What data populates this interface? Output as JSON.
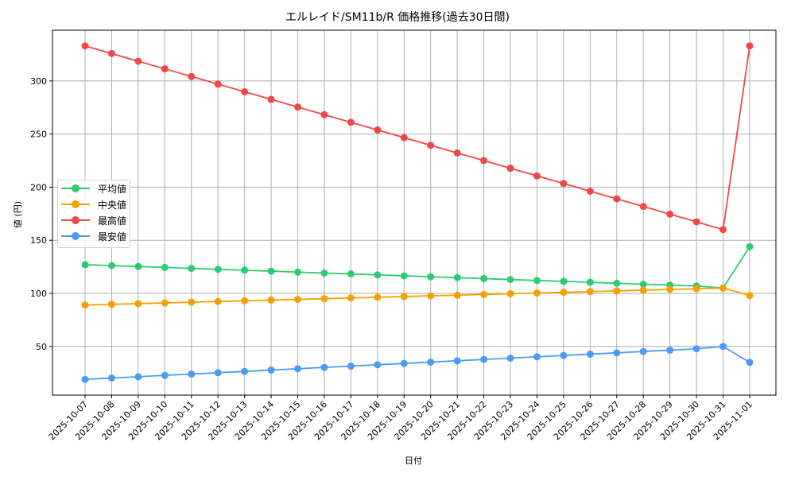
{
  "chart_data": {
    "type": "line",
    "title": "エルレイド/SM11b/R 価格推移(過去30日間)",
    "xlabel": "日付",
    "ylabel": "値 (円)",
    "ylim": [
      8,
      346
    ],
    "yticks": [
      50,
      100,
      150,
      200,
      250,
      300
    ],
    "grid": true,
    "legend_position": "center left",
    "categories": [
      "2025-10-07",
      "2025-10-08",
      "2025-10-09",
      "2025-10-10",
      "2025-10-11",
      "2025-10-12",
      "2025-10-13",
      "2025-10-14",
      "2025-10-15",
      "2025-10-16",
      "2025-10-17",
      "2025-10-18",
      "2025-10-19",
      "2025-10-20",
      "2025-10-21",
      "2025-10-22",
      "2025-10-23",
      "2025-10-24",
      "2025-10-25",
      "2025-10-26",
      "2025-10-27",
      "2025-10-28",
      "2025-10-29",
      "2025-10-30",
      "2025-10-31",
      "2025-11-01"
    ],
    "series": [
      {
        "name": "平均値",
        "color": "#2ecc71",
        "values": [
          127,
          126.1,
          125.3,
          124.4,
          123.5,
          122.6,
          121.8,
          120.9,
          120,
          119.1,
          118.3,
          117.4,
          116.5,
          115.6,
          114.8,
          113.9,
          113,
          112.1,
          111.3,
          110.4,
          109.5,
          108.6,
          107.8,
          106.9,
          105,
          144
        ]
      },
      {
        "name": "中央値",
        "color": "#f5a000",
        "values": [
          89,
          89.7,
          90.3,
          91,
          91.7,
          92.3,
          93,
          93.7,
          94.3,
          95,
          95.7,
          96.3,
          97,
          97.7,
          98.3,
          99,
          99.7,
          100.3,
          101,
          101.7,
          102.3,
          103,
          103.7,
          104.3,
          105,
          98
        ]
      },
      {
        "name": "最高値",
        "color": "#f04848",
        "values": [
          333,
          325.8,
          318.6,
          311.4,
          304.2,
          297,
          289.8,
          282.6,
          275.4,
          268.2,
          261,
          253.8,
          246.6,
          239.4,
          232.2,
          225,
          217.8,
          210.6,
          203.4,
          196.2,
          189,
          181.8,
          174.6,
          167.4,
          160,
          333
        ]
      },
      {
        "name": "最安値",
        "color": "#4d9bf8",
        "values": [
          19,
          20.3,
          21.5,
          22.8,
          24,
          25.3,
          26.5,
          27.8,
          29,
          30.3,
          31.5,
          32.8,
          34,
          35.3,
          36.5,
          37.8,
          39,
          40.3,
          41.5,
          42.8,
          44,
          45.3,
          46.5,
          47.8,
          50,
          35
        ]
      }
    ]
  }
}
